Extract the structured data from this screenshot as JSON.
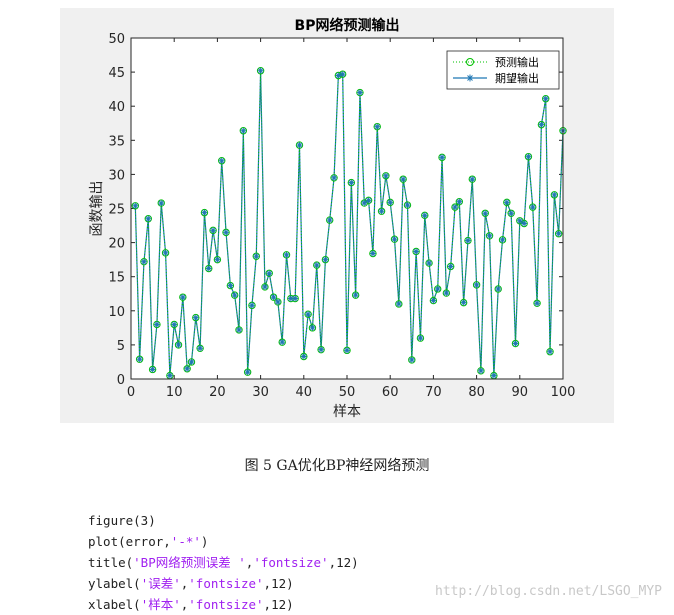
{
  "chart_data": {
    "type": "line",
    "title": "BP网络预测输出",
    "xlabel": "样本",
    "ylabel": "函数输出",
    "xlim": [
      0,
      100
    ],
    "ylim": [
      0,
      50
    ],
    "xticks": [
      0,
      10,
      20,
      30,
      40,
      50,
      60,
      70,
      80,
      90,
      100
    ],
    "yticks": [
      0,
      5,
      10,
      15,
      20,
      25,
      30,
      35,
      40,
      45,
      50
    ],
    "legend_position": "top-right",
    "x": [
      1,
      2,
      3,
      4,
      5,
      6,
      7,
      8,
      9,
      10,
      11,
      12,
      13,
      14,
      15,
      16,
      17,
      18,
      19,
      20,
      21,
      22,
      23,
      24,
      25,
      26,
      27,
      28,
      29,
      30,
      31,
      32,
      33,
      34,
      35,
      36,
      37,
      38,
      39,
      40,
      41,
      42,
      43,
      44,
      45,
      46,
      47,
      48,
      49,
      50,
      51,
      52,
      53,
      54,
      55,
      56,
      57,
      58,
      59,
      60,
      61,
      62,
      63,
      64,
      65,
      66,
      67,
      68,
      69,
      70,
      71,
      72,
      73,
      74,
      75,
      76,
      77,
      78,
      79,
      80,
      81,
      82,
      83,
      84,
      85,
      86,
      87,
      88,
      89,
      90,
      91,
      92,
      93,
      94,
      95,
      96,
      97,
      98,
      99,
      100
    ],
    "series": [
      {
        "name": "预测输出",
        "color": "#00c000",
        "style": "dotted-circle",
        "values": [
          25.4,
          2.9,
          17.2,
          23.5,
          1.4,
          8.0,
          25.8,
          18.5,
          0.5,
          8.0,
          5.0,
          12.0,
          1.5,
          2.5,
          9.0,
          4.5,
          24.4,
          16.2,
          21.8,
          17.5,
          32.0,
          21.5,
          13.7,
          12.3,
          7.2,
          36.4,
          1.0,
          10.8,
          18.0,
          45.2,
          13.5,
          15.5,
          12.0,
          11.3,
          5.4,
          18.2,
          11.8,
          11.8,
          34.3,
          3.3,
          9.5,
          7.5,
          16.7,
          4.3,
          17.5,
          23.3,
          29.5,
          44.5,
          44.7,
          4.2,
          28.8,
          12.3,
          42.0,
          25.8,
          26.2,
          18.4,
          37.0,
          24.6,
          29.8,
          25.9,
          20.5,
          11.0,
          29.3,
          25.5,
          2.8,
          18.7,
          6.0,
          24.0,
          17.0,
          11.5,
          13.2,
          32.5,
          12.6,
          16.5,
          25.2,
          26.0,
          11.2,
          20.3,
          29.3,
          13.8,
          1.2,
          24.3,
          21.0,
          0.5,
          13.2,
          20.4,
          25.9,
          24.3,
          5.2,
          23.2,
          22.8,
          32.6,
          25.2,
          11.1,
          37.3,
          41.1,
          4.0,
          27.0,
          21.3,
          36.4
        ]
      },
      {
        "name": "期望输出",
        "color": "#1f77b4",
        "style": "solid-star",
        "values": [
          25.4,
          2.9,
          17.2,
          23.5,
          1.4,
          8.0,
          25.8,
          18.5,
          0.5,
          8.0,
          5.0,
          12.0,
          1.5,
          2.5,
          9.0,
          4.5,
          24.4,
          16.2,
          21.8,
          17.5,
          32.0,
          21.5,
          13.7,
          12.3,
          7.2,
          36.4,
          1.0,
          10.8,
          18.0,
          45.2,
          13.5,
          15.5,
          12.0,
          11.3,
          5.4,
          18.2,
          11.8,
          11.8,
          34.3,
          3.3,
          9.5,
          7.5,
          16.7,
          4.3,
          17.5,
          23.3,
          29.5,
          44.5,
          44.7,
          4.2,
          28.8,
          12.3,
          42.0,
          25.8,
          26.2,
          18.4,
          37.0,
          24.6,
          29.8,
          25.9,
          20.5,
          11.0,
          29.3,
          25.5,
          2.8,
          18.7,
          6.0,
          24.0,
          17.0,
          11.5,
          13.2,
          32.5,
          12.6,
          16.5,
          25.2,
          26.0,
          11.2,
          20.3,
          29.3,
          13.8,
          1.2,
          24.3,
          21.0,
          0.5,
          13.2,
          20.4,
          25.9,
          24.3,
          5.2,
          23.2,
          22.8,
          32.6,
          25.2,
          11.1,
          37.3,
          41.1,
          4.0,
          27.0,
          21.3,
          36.4
        ]
      }
    ]
  },
  "caption": "图 5 GA优化BP神经网络预测",
  "code": {
    "line1": "figure(3)",
    "line2_pre": "plot(error,",
    "line2_str": "'-*'",
    "line2_post": ")",
    "line3_pre": "title(",
    "line3_str1": "'BP网络预测误差 '",
    "line3_mid": ",",
    "line3_str2": "'fontsize'",
    "line3_post": ",12)",
    "line4_pre": "ylabel(",
    "line4_str1": "'误差'",
    "line4_mid": ",",
    "line4_str2": "'fontsize'",
    "line4_post": ",12)",
    "line5_pre": "xlabel(",
    "line5_str1": "'样本'",
    "line5_mid": ",",
    "line5_str2": "'fontsize'",
    "line5_post": ",12)"
  },
  "watermark": "http://blog.csdn.net/LSGO_MYP"
}
